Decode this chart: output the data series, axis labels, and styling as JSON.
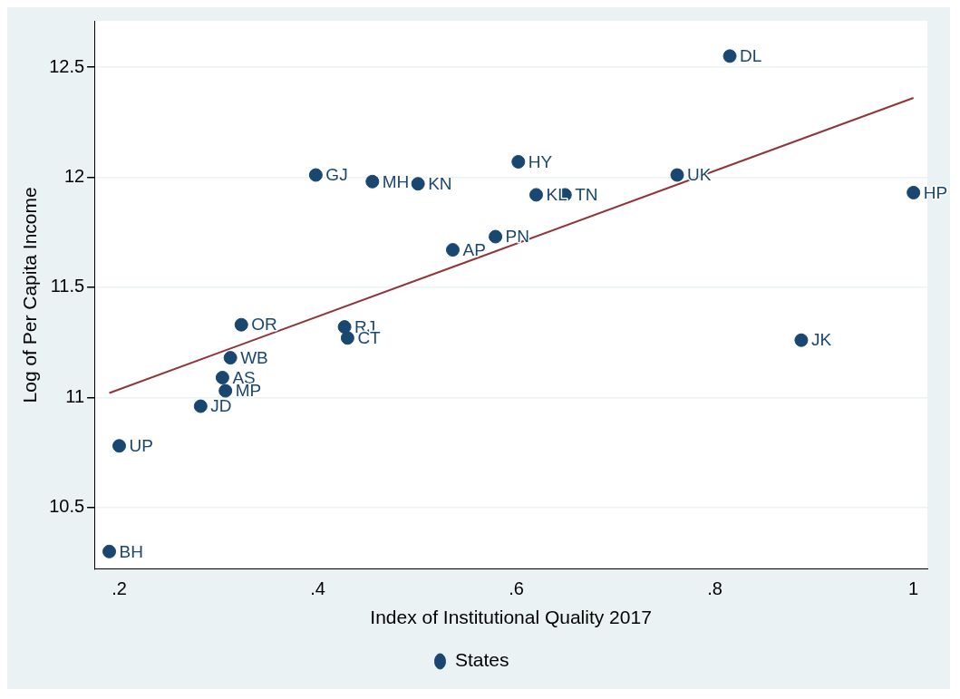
{
  "chart_data": {
    "type": "scatter",
    "xlabel": "Index of Institutional Quality 2017",
    "ylabel": "Log of Per Capita Income",
    "xlim": [
      0.175,
      1.014
    ],
    "ylim": [
      10.22,
      12.71
    ],
    "xticks": [
      {
        "value": 0.2,
        "label": ".2"
      },
      {
        "value": 0.4,
        "label": ".4"
      },
      {
        "value": 0.6,
        "label": ".6"
      },
      {
        "value": 0.8,
        "label": ".8"
      },
      1
    ],
    "yticks": [
      10.5,
      11,
      11.5,
      12,
      12.5
    ],
    "grid": "y",
    "legend": "bottom",
    "marker": "circle",
    "series": [
      {
        "name": "States",
        "color": "#1a476f",
        "x": [
          0.815,
          0.602,
          0.398,
          0.455,
          0.501,
          0.762,
          0.62,
          0.649,
          1.0,
          0.579,
          0.536,
          0.323,
          0.427,
          0.43,
          0.887,
          0.312,
          0.304,
          0.307,
          0.282,
          0.2,
          0.19
        ],
        "values": [
          12.55,
          12.07,
          12.01,
          11.98,
          11.97,
          12.01,
          11.92,
          11.92,
          11.93,
          11.73,
          11.67,
          11.33,
          11.32,
          11.27,
          11.26,
          11.18,
          11.09,
          11.03,
          10.96,
          10.78,
          10.3
        ]
      },
      {
        "type": "line",
        "color": "#90353b",
        "marker": "none",
        "x": [
          0.19,
          1.0
        ],
        "values": [
          11.02,
          12.36
        ]
      }
    ],
    "annotations": [
      {
        "text": "DL",
        "x": 0.815,
        "y": 12.55
      },
      {
        "text": "HY",
        "x": 0.602,
        "y": 12.07
      },
      {
        "text": "GJ",
        "x": 0.398,
        "y": 12.01
      },
      {
        "text": "MH",
        "x": 0.455,
        "y": 11.98
      },
      {
        "text": "KN",
        "x": 0.501,
        "y": 11.97
      },
      {
        "text": "UK",
        "x": 0.762,
        "y": 12.01
      },
      {
        "text": "KL",
        "x": 0.62,
        "y": 11.92
      },
      {
        "text": "TN",
        "x": 0.649,
        "y": 11.92
      },
      {
        "text": "HP",
        "x": 1.0,
        "y": 11.93
      },
      {
        "text": "PN",
        "x": 0.579,
        "y": 11.73
      },
      {
        "text": "AP",
        "x": 0.536,
        "y": 11.67
      },
      {
        "text": "OR",
        "x": 0.323,
        "y": 11.33
      },
      {
        "text": "RJ",
        "x": 0.427,
        "y": 11.32
      },
      {
        "text": "CT",
        "x": 0.43,
        "y": 11.27
      },
      {
        "text": "JK",
        "x": 0.887,
        "y": 11.26
      },
      {
        "text": "WB",
        "x": 0.312,
        "y": 11.18
      },
      {
        "text": "AS",
        "x": 0.304,
        "y": 11.09
      },
      {
        "text": "MP",
        "x": 0.307,
        "y": 11.03
      },
      {
        "text": "JD",
        "x": 0.282,
        "y": 10.96
      },
      {
        "text": "UP",
        "x": 0.2,
        "y": 10.78
      },
      {
        "text": "BH",
        "x": 0.19,
        "y": 10.3
      }
    ]
  }
}
